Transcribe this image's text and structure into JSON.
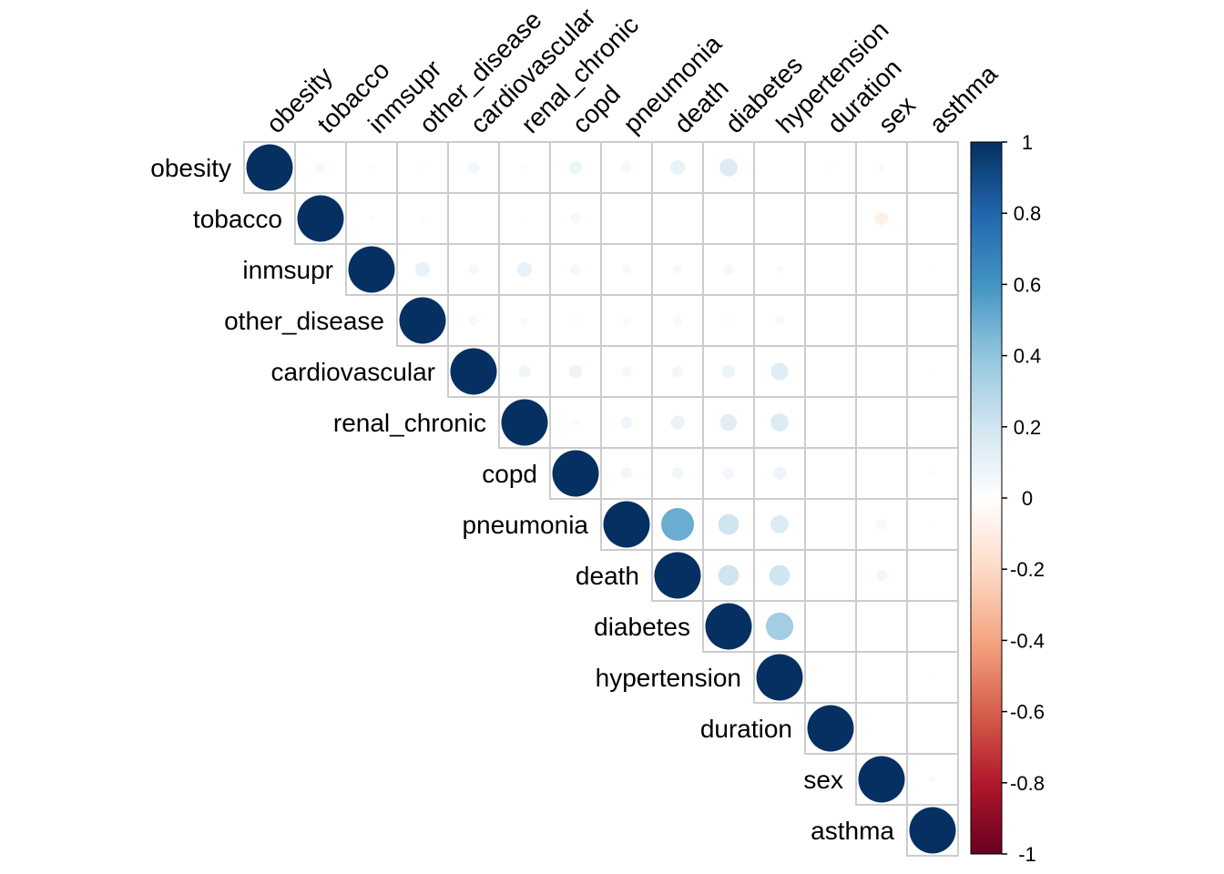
{
  "chart_data": {
    "type": "heatmap",
    "variables": [
      "obesity",
      "tobacco",
      "inmsupr",
      "other_disease",
      "cardiovascular",
      "renal_chronic",
      "copd",
      "pneumonia",
      "death",
      "diabetes",
      "hypertension",
      "duration",
      "sex",
      "asthma"
    ],
    "matrix_layout": "upper-triangle",
    "glyph": "circle (size and color scale with value)",
    "grid": true,
    "legend_placement": "right",
    "colorbar": {
      "ticks": [
        "1",
        "0.8",
        "0.6",
        "0.4",
        "0.2",
        "0",
        "-0.2",
        "-0.4",
        "-0.6",
        "-0.8",
        "-1"
      ],
      "range": [
        -1,
        1
      ],
      "colors": {
        "negative_end": "#67001F",
        "mid": "#FFFFFF",
        "positive_end": "#053061"
      }
    },
    "values": [
      [
        1,
        0.05,
        0.02,
        0.02,
        0.06,
        0.02,
        0.08,
        0.05,
        0.1,
        0.15,
        0,
        0.02,
        0.03,
        0
      ],
      [
        null,
        1,
        0.02,
        0.02,
        0.01,
        0.01,
        0.05,
        0.01,
        0.01,
        0.01,
        0,
        0,
        -0.08,
        0
      ],
      [
        null,
        null,
        1,
        0.1,
        0.05,
        0.1,
        0.05,
        0.04,
        0.04,
        0.05,
        0.03,
        0,
        0.01,
        0.01
      ],
      [
        null,
        null,
        null,
        1,
        0.05,
        0.03,
        0.02,
        0.03,
        0.04,
        0.02,
        0.04,
        0,
        0.01,
        0.01
      ],
      [
        null,
        null,
        null,
        null,
        1,
        0.07,
        0.08,
        0.05,
        0.06,
        0.08,
        0.14,
        0,
        0,
        0.01
      ],
      [
        null,
        null,
        null,
        null,
        null,
        1,
        0.03,
        0.07,
        0.09,
        0.13,
        0.15,
        0,
        0,
        0.01
      ],
      [
        null,
        null,
        null,
        null,
        null,
        null,
        1,
        0.06,
        0.06,
        0.06,
        0.08,
        0,
        0,
        0.02
      ],
      [
        null,
        null,
        null,
        null,
        null,
        null,
        null,
        1,
        0.5,
        0.2,
        0.15,
        0,
        -0.05,
        0.01
      ],
      [
        null,
        null,
        null,
        null,
        null,
        null,
        null,
        null,
        1,
        0.2,
        0.2,
        0.01,
        -0.06,
        0.01
      ],
      [
        null,
        null,
        null,
        null,
        null,
        null,
        null,
        null,
        null,
        1,
        0.35,
        0,
        0,
        0
      ],
      [
        null,
        null,
        null,
        null,
        null,
        null,
        null,
        null,
        null,
        null,
        1,
        0,
        0,
        0.01
      ],
      [
        null,
        null,
        null,
        null,
        null,
        null,
        null,
        null,
        null,
        null,
        null,
        1,
        0,
        0
      ],
      [
        null,
        null,
        null,
        null,
        null,
        null,
        null,
        null,
        null,
        null,
        null,
        null,
        1,
        0.03
      ],
      [
        null,
        null,
        null,
        null,
        null,
        null,
        null,
        null,
        null,
        null,
        null,
        null,
        null,
        1
      ]
    ]
  }
}
